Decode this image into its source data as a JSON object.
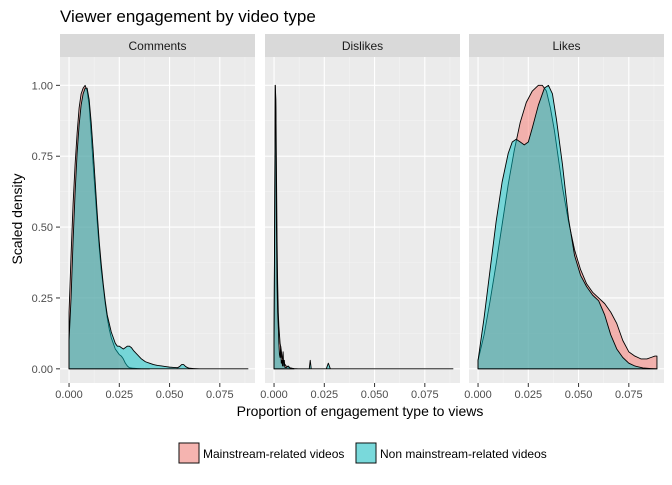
{
  "chart_data": {
    "type": "area",
    "title": "Viewer engagement by video type",
    "xlabel": "Proportion of engagement type to views",
    "ylabel": "Scaled density",
    "xlim": [
      -0.0045,
      0.0925
    ],
    "ylim": [
      -0.05,
      1.1
    ],
    "x_ticks": [
      0,
      0.025,
      0.05,
      0.075
    ],
    "x_tick_labels": [
      "0.000",
      "0.025",
      "0.050",
      "0.075"
    ],
    "y_ticks": [
      0,
      0.25,
      0.5,
      0.75,
      1
    ],
    "y_tick_labels": [
      "0.00",
      "0.25",
      "0.50",
      "0.75",
      "1.00"
    ],
    "grid": true,
    "legend_position": "bottom",
    "series": [
      {
        "name": "Mainstream-related videos",
        "color": "#F8766D",
        "opacity": 0.5
      },
      {
        "name": "Non mainstream-related videos",
        "color": "#00BFC4",
        "opacity": 0.5
      }
    ],
    "panels": [
      {
        "label": "Comments",
        "series": [
          {
            "name": "Mainstream-related videos",
            "x": [
              0,
              0.001,
              0.002,
              0.003,
              0.004,
              0.005,
              0.006,
              0.007,
              0.008,
              0.009,
              0.01,
              0.011,
              0.012,
              0.013,
              0.014,
              0.015,
              0.016,
              0.017,
              0.018,
              0.019,
              0.02,
              0.021,
              0.022,
              0.023,
              0.024,
              0.025,
              0.026,
              0.027,
              0.028,
              0.029,
              0.03,
              0.032,
              0.034,
              0.036,
              0.038,
              0.04
            ],
            "y": [
              0.2,
              0.4,
              0.58,
              0.72,
              0.83,
              0.92,
              0.97,
              0.99,
              1.0,
              0.98,
              0.93,
              0.83,
              0.72,
              0.62,
              0.52,
              0.43,
              0.35,
              0.29,
              0.23,
              0.18,
              0.14,
              0.11,
              0.09,
              0.07,
              0.06,
              0.05,
              0.045,
              0.035,
              0.02,
              0.01,
              0.004,
              0.002,
              0.001,
              0.0,
              0.0,
              0.0
            ]
          },
          {
            "name": "Non mainstream-related videos",
            "x": [
              0,
              0.001,
              0.002,
              0.003,
              0.004,
              0.005,
              0.006,
              0.007,
              0.008,
              0.009,
              0.01,
              0.011,
              0.012,
              0.013,
              0.014,
              0.015,
              0.016,
              0.017,
              0.018,
              0.019,
              0.02,
              0.021,
              0.022,
              0.023,
              0.024,
              0.025,
              0.026,
              0.027,
              0.028,
              0.029,
              0.03,
              0.031,
              0.032,
              0.034,
              0.036,
              0.038,
              0.04,
              0.042,
              0.044,
              0.046,
              0.048,
              0.05,
              0.052,
              0.054,
              0.055,
              0.056,
              0.057,
              0.058,
              0.059,
              0.06,
              0.062,
              0.065,
              0.07,
              0.08,
              0.089
            ],
            "y": [
              0.1,
              0.25,
              0.45,
              0.62,
              0.76,
              0.86,
              0.93,
              0.97,
              0.99,
              0.99,
              0.95,
              0.87,
              0.77,
              0.66,
              0.55,
              0.45,
              0.37,
              0.3,
              0.24,
              0.19,
              0.16,
              0.13,
              0.11,
              0.09,
              0.08,
              0.08,
              0.075,
              0.07,
              0.075,
              0.08,
              0.08,
              0.075,
              0.065,
              0.05,
              0.035,
              0.025,
              0.02,
              0.015,
              0.012,
              0.01,
              0.008,
              0.006,
              0.005,
              0.004,
              0.008,
              0.015,
              0.015,
              0.008,
              0.004,
              0.002,
              0.001,
              0.0,
              0.0,
              0.0,
              0.0
            ]
          }
        ]
      },
      {
        "label": "Dislikes",
        "series": [
          {
            "name": "Mainstream-related videos",
            "x": [
              0,
              0.0003,
              0.0006,
              0.0009,
              0.0012,
              0.0015,
              0.0018,
              0.0021,
              0.0024,
              0.0027,
              0.003,
              0.0035,
              0.004,
              0.0045,
              0.005,
              0.006,
              0.008,
              0.01
            ],
            "y": [
              0.1,
              0.55,
              1.0,
              0.95,
              0.7,
              0.45,
              0.3,
              0.2,
              0.15,
              0.12,
              0.09,
              0.07,
              0.04,
              0.03,
              0.02,
              0.01,
              0.003,
              0.0
            ]
          },
          {
            "name": "Non mainstream-related videos",
            "x": [
              0,
              0.0003,
              0.0006,
              0.0009,
              0.0012,
              0.0015,
              0.0018,
              0.0021,
              0.0024,
              0.0027,
              0.003,
              0.0033,
              0.0036,
              0.0039,
              0.0042,
              0.0045,
              0.0048,
              0.0051,
              0.0054,
              0.006,
              0.007,
              0.008,
              0.009,
              0.01,
              0.012,
              0.014,
              0.016,
              0.0175,
              0.018,
              0.0185,
              0.02,
              0.024,
              0.026,
              0.027,
              0.028,
              0.03,
              0.035,
              0.045,
              0.06,
              0.075,
              0.089
            ],
            "y": [
              0.1,
              0.5,
              1.0,
              0.9,
              0.5,
              0.3,
              0.2,
              0.15,
              0.09,
              0.05,
              0.04,
              0.08,
              0.02,
              0.03,
              0.01,
              0.06,
              0.01,
              0.03,
              0.005,
              0.004,
              0.01,
              0.003,
              0.002,
              0.001,
              0.0,
              0.0,
              0.0,
              0.0,
              0.03,
              0.0,
              0.0,
              0.0,
              0.0,
              0.02,
              0.0,
              0.0,
              0.0,
              0.0,
              0.0,
              0.0,
              0.0
            ]
          }
        ]
      },
      {
        "label": "Likes",
        "series": [
          {
            "name": "Mainstream-related videos",
            "x": [
              0,
              0.003,
              0.006,
              0.009,
              0.012,
              0.015,
              0.018,
              0.021,
              0.024,
              0.027,
              0.03,
              0.032,
              0.034,
              0.036,
              0.038,
              0.04,
              0.042,
              0.045,
              0.048,
              0.051,
              0.054,
              0.057,
              0.06,
              0.063,
              0.066,
              0.069,
              0.072,
              0.075,
              0.078,
              0.081,
              0.084,
              0.086,
              0.088,
              0.089
            ],
            "y": [
              0.03,
              0.12,
              0.24,
              0.37,
              0.51,
              0.65,
              0.77,
              0.87,
              0.94,
              0.98,
              1.0,
              1.0,
              0.98,
              0.92,
              0.84,
              0.74,
              0.64,
              0.52,
              0.42,
              0.35,
              0.3,
              0.27,
              0.25,
              0.23,
              0.2,
              0.16,
              0.1,
              0.06,
              0.045,
              0.035,
              0.035,
              0.04,
              0.045,
              0.045
            ]
          },
          {
            "name": "Non mainstream-related videos",
            "x": [
              0,
              0.003,
              0.006,
              0.009,
              0.012,
              0.015,
              0.017,
              0.019,
              0.021,
              0.023,
              0.025,
              0.027,
              0.03,
              0.033,
              0.035,
              0.037,
              0.039,
              0.042,
              0.045,
              0.048,
              0.051,
              0.054,
              0.057,
              0.06,
              0.063,
              0.066,
              0.069,
              0.072,
              0.075,
              0.078,
              0.082,
              0.086,
              0.089
            ],
            "y": [
              0.03,
              0.18,
              0.35,
              0.52,
              0.66,
              0.76,
              0.8,
              0.81,
              0.8,
              0.79,
              0.8,
              0.85,
              0.93,
              0.99,
              1.0,
              0.97,
              0.88,
              0.72,
              0.53,
              0.4,
              0.33,
              0.29,
              0.26,
              0.24,
              0.19,
              0.12,
              0.07,
              0.04,
              0.02,
              0.01,
              0.003,
              0.001,
              0.0
            ]
          }
        ]
      }
    ]
  }
}
